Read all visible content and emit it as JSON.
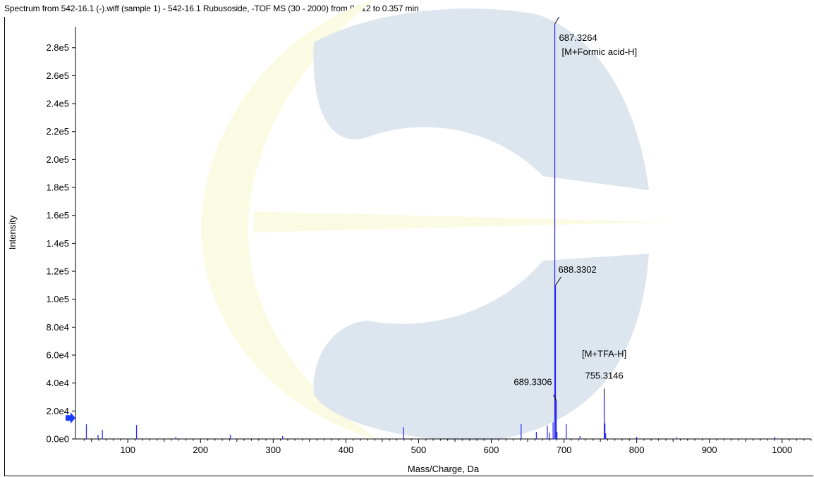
{
  "window": {
    "title": "Spectrum from 542-16.1 (-).wiff (sample 1) - 542-16.1 Rubusoside, -TOF MS (30 - 2000) from 0.312 to 0.357 min"
  },
  "colors": {
    "peak": "#2b2bf0",
    "watermark_blue": "#dde6ee",
    "watermark_yellow": "#fbfbe4",
    "marker": "#1a3cff"
  },
  "icons": {
    "marker": "arrow-right-icon"
  },
  "chart_data": {
    "type": "bar",
    "title": "Spectrum from 542-16.1 (-).wiff (sample 1) - 542-16.1 Rubusoside, -TOF MS (30 - 2000) from 0.312 to 0.357 min",
    "xlabel": "Mass/Charge, Da",
    "ylabel": "Intensity",
    "xlim": [
      28,
      1040
    ],
    "ylim": [
      0,
      295000
    ],
    "grid": false,
    "xticks": [
      100,
      200,
      300,
      400,
      500,
      600,
      700,
      800,
      900,
      1000
    ],
    "xtick_labels": [
      "100",
      "200",
      "300",
      "400",
      "500",
      "600",
      "700",
      "800",
      "900",
      "1000"
    ],
    "yticks": [
      0,
      20000,
      40000,
      60000,
      80000,
      100000,
      120000,
      140000,
      160000,
      180000,
      200000,
      220000,
      240000,
      260000,
      280000
    ],
    "ytick_labels": [
      "0.0e0",
      "2.0e4",
      "4.0e4",
      "6.0e4",
      "8.0e4",
      "1.0e5",
      "1.2e5",
      "1.4e5",
      "1.6e5",
      "1.8e5",
      "2.0e5",
      "2.2e5",
      "2.4e5",
      "2.6e5",
      "2.8e5"
    ],
    "peaks": [
      {
        "mz": 43,
        "intensity": 10500
      },
      {
        "mz": 59,
        "intensity": 3000
      },
      {
        "mz": 65,
        "intensity": 6500
      },
      {
        "mz": 112,
        "intensity": 10000
      },
      {
        "mz": 166,
        "intensity": 1500
      },
      {
        "mz": 241,
        "intensity": 3000
      },
      {
        "mz": 313,
        "intensity": 2000
      },
      {
        "mz": 479,
        "intensity": 8500
      },
      {
        "mz": 641,
        "intensity": 10500
      },
      {
        "mz": 662,
        "intensity": 5000
      },
      {
        "mz": 677,
        "intensity": 9500
      },
      {
        "mz": 680,
        "intensity": 4500
      },
      {
        "mz": 685,
        "intensity": 12000
      },
      {
        "mz": 687.3264,
        "intensity": 297000
      },
      {
        "mz": 688.3302,
        "intensity": 110000
      },
      {
        "mz": 689.3306,
        "intensity": 27500
      },
      {
        "mz": 690.3,
        "intensity": 5000
      },
      {
        "mz": 703,
        "intensity": 10500
      },
      {
        "mz": 722,
        "intensity": 2000
      },
      {
        "mz": 755.3146,
        "intensity": 31000
      },
      {
        "mz": 756.3,
        "intensity": 11000
      },
      {
        "mz": 757.3,
        "intensity": 4000
      },
      {
        "mz": 800,
        "intensity": 1500
      },
      {
        "mz": 855,
        "intensity": 1200
      },
      {
        "mz": 990,
        "intensity": 1500
      }
    ],
    "annotations": [
      {
        "mz": 687.3264,
        "intensity": 297000,
        "label": "687.3264",
        "sublabel": "[M+Formic acid-H]"
      },
      {
        "mz": 688.3302,
        "intensity": 110000,
        "label": "688.3302",
        "sublabel": ""
      },
      {
        "mz": 689.3306,
        "intensity": 27500,
        "label": "689.3306",
        "sublabel": ""
      },
      {
        "mz": 755.3146,
        "intensity": 31000,
        "label": "755.3146",
        "sublabel": "[M+TFA-H]"
      }
    ],
    "baseline_marker_intensity": 15000
  }
}
